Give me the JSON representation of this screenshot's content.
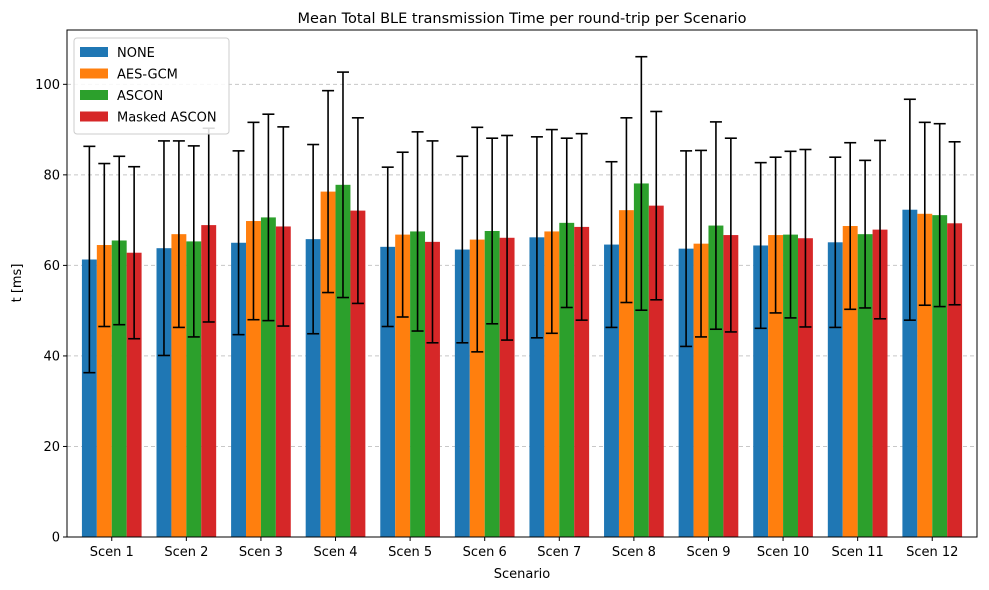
{
  "chart_data": {
    "type": "bar",
    "title": "Mean Total BLE transmission Time per round-trip per Scenario",
    "xlabel": "Scenario",
    "ylabel": "t [ms]",
    "ylim": [
      0,
      112
    ],
    "yticks": [
      0,
      20,
      40,
      60,
      80,
      100
    ],
    "grid": "y-dashed",
    "legend_position": "top-left",
    "categories": [
      "Scen 1",
      "Scen 2",
      "Scen 3",
      "Scen 4",
      "Scen 5",
      "Scen 6",
      "Scen 7",
      "Scen 8",
      "Scen 9",
      "Scen 10",
      "Scen 11",
      "Scen 12"
    ],
    "series": [
      {
        "name": "NONE",
        "color": "#1f77b4",
        "values": [
          61.3,
          63.8,
          65.0,
          65.8,
          64.1,
          63.5,
          66.2,
          64.6,
          63.7,
          64.4,
          65.1,
          72.3
        ],
        "errors": [
          25.0,
          23.7,
          20.3,
          20.9,
          17.6,
          20.6,
          22.2,
          18.3,
          21.6,
          18.3,
          18.8,
          24.4
        ]
      },
      {
        "name": "AES-GCM",
        "color": "#ff7f0e",
        "values": [
          64.5,
          66.9,
          69.8,
          76.3,
          66.8,
          65.7,
          67.5,
          72.2,
          64.8,
          66.7,
          68.7,
          71.4
        ],
        "errors": [
          18.0,
          20.6,
          21.8,
          22.3,
          18.2,
          24.8,
          22.5,
          20.4,
          20.6,
          17.2,
          18.4,
          20.2
        ]
      },
      {
        "name": "ASCON",
        "color": "#2ca02c",
        "values": [
          65.5,
          65.3,
          70.6,
          77.8,
          67.5,
          67.6,
          69.4,
          78.1,
          68.8,
          66.8,
          66.9,
          71.1
        ],
        "errors": [
          18.6,
          21.1,
          22.8,
          24.9,
          22.0,
          20.5,
          18.7,
          28.0,
          22.9,
          18.4,
          16.3,
          20.2
        ]
      },
      {
        "name": "Masked ASCON",
        "color": "#d62728",
        "values": [
          62.8,
          68.9,
          68.6,
          72.1,
          65.2,
          66.1,
          68.5,
          73.2,
          66.7,
          66.0,
          67.9,
          69.3
        ],
        "errors": [
          19.0,
          21.4,
          22.0,
          20.5,
          22.3,
          22.6,
          20.6,
          20.8,
          21.4,
          19.6,
          19.7,
          18.0
        ]
      }
    ]
  }
}
